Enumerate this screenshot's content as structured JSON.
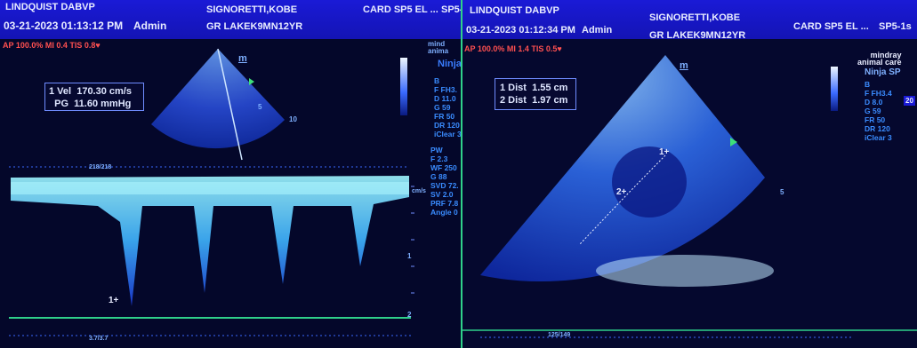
{
  "left": {
    "header": {
      "patient": "LINDQUIST DABVP",
      "datetime": "03-21-2023 01:13:12 PM",
      "operator": "Admin",
      "owner": "SIGNORETTI,KOBE",
      "id": "GR LAKEK9MN12YR",
      "preset": "CARD SP5 EL ...",
      "probe": "SP5-"
    },
    "status": {
      "text": "AP 100.0% MI 0.4 TIS 0.8"
    },
    "measurements": [
      {
        "label": "1 Vel",
        "value": "170.30 cm/s"
      },
      {
        "label": "PG",
        "value": "11.60 mmHg"
      }
    ],
    "brand": {
      "line1": "mind",
      "line2": "anima",
      "model": "Ninja"
    },
    "b_params": [
      "B",
      "F FH3.",
      "D 11.0",
      "G 59",
      "FR 50",
      "DR 120",
      "iClear 3"
    ],
    "pw_params": [
      "PW",
      "F 2.3",
      "WF 250",
      "G 88",
      "SVD 72.",
      "SV 2.0",
      "PRF 7.8",
      "Angle 0"
    ],
    "markers": {
      "m": "m",
      "cursor": "1+"
    },
    "depth_labels": [
      "5",
      "10"
    ],
    "scale_labels": [
      "1",
      "2"
    ],
    "unit": "cm/s",
    "timeline_top": "218/218",
    "timeline_bottom": "3.7/3.7"
  },
  "right": {
    "header": {
      "patient": "LINDQUIST DABVP",
      "datetime": "03-21-2023 01:12:34 PM",
      "operator": "Admin",
      "owner": "SIGNORETTI,KOBE",
      "id": "GR LAKEK9MN12YR",
      "preset": "CARD SP5 EL ...",
      "probe": "SP5-1s"
    },
    "status": {
      "text": "AP 100.0% MI 1.4 TIS 0.5"
    },
    "measurements": [
      {
        "label": "1 Dist",
        "value": "1.55 cm"
      },
      {
        "label": "2 Dist",
        "value": "1.97 cm"
      }
    ],
    "brand": {
      "line1": "mindray",
      "line2": "animal care",
      "model": "Ninja SP"
    },
    "b_params": [
      "B",
      "F FH3.4",
      "D 8.0",
      "G 59",
      "FR 50",
      "DR 120",
      "iClear 3"
    ],
    "markers": {
      "m": "m",
      "cursor1": "1+",
      "cursor2": "2+"
    },
    "depth_labels": [
      "5"
    ],
    "edge_value": "20",
    "timeline_bottom": "125/149"
  },
  "colors": {
    "header_blue": "#1a1ad6",
    "text_white": "#e8ecff",
    "param_blue": "#3a8cff",
    "heart_red": "#ff3030",
    "baseline_green": "#2fd08a",
    "doppler_cyan": "#7fe8ff"
  },
  "icons": [
    "heart-icon",
    "mindray-logo-icon",
    "green-triangle-marker-icon",
    "cursor-cross-icon"
  ]
}
